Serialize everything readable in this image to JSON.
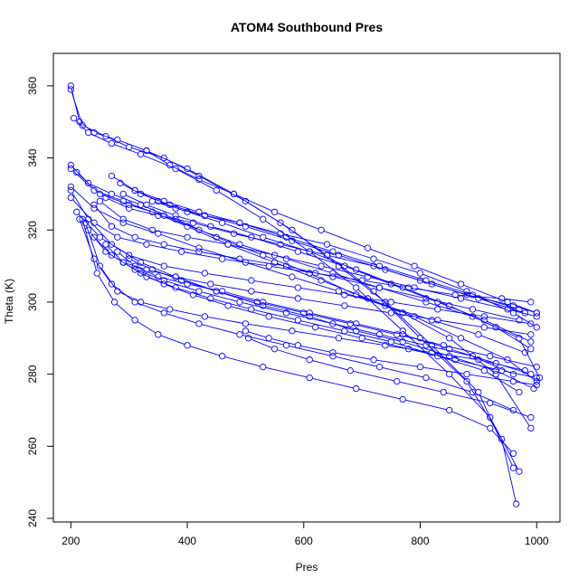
{
  "chart_data": {
    "type": "line",
    "title": "ATOM4 Southbound Pres",
    "xlabel": "Pres",
    "ylabel": "Theta (K)",
    "xlim": [
      170,
      1040
    ],
    "ylim": [
      239,
      369
    ],
    "xticks": [
      200,
      400,
      600,
      800,
      1000
    ],
    "yticks": [
      240,
      260,
      280,
      300,
      320,
      340,
      360
    ],
    "xtick_labels": [
      "200",
      "400",
      "600",
      "800",
      "1000"
    ],
    "ytick_labels": [
      "240",
      "260",
      "280",
      "300",
      "320",
      "340",
      "360"
    ],
    "grid": false,
    "legend": "none",
    "series_color": "#0000ff",
    "marker": "open-circle",
    "series": [
      {
        "x": [
          200,
          215,
          240,
          280,
          330,
          400,
          480,
          560,
          640,
          720,
          800,
          880,
          940,
          965
        ],
        "y": [
          360,
          350,
          347,
          345,
          342,
          337,
          330,
          322,
          313,
          303,
          290,
          278,
          262,
          244
        ]
      },
      {
        "x": [
          200,
          220,
          260,
          300,
          360,
          420,
          500,
          580,
          660,
          740,
          820,
          900,
          960
        ],
        "y": [
          359,
          349,
          346,
          343,
          340,
          335,
          328,
          320,
          310,
          300,
          288,
          275,
          254
        ]
      },
      {
        "x": [
          205,
          230,
          270,
          320,
          380,
          450,
          530,
          610,
          690,
          770,
          850,
          920,
          970
        ],
        "y": [
          351,
          347,
          344,
          341,
          337,
          331,
          323,
          314,
          304,
          292,
          280,
          268,
          253
        ]
      },
      {
        "x": [
          200,
          230,
          270,
          320,
          380,
          450,
          530,
          610,
          690,
          770,
          850,
          930,
          990
        ],
        "y": [
          338,
          333,
          330,
          327,
          323,
          318,
          313,
          308,
          302,
          297,
          290,
          280,
          265
        ]
      },
      {
        "x": [
          200,
          240,
          290,
          340,
          400,
          470,
          550,
          630,
          710,
          790,
          870,
          950,
          1000
        ],
        "y": [
          337,
          331,
          328,
          325,
          321,
          316,
          311,
          306,
          301,
          296,
          290,
          284,
          278
        ]
      },
      {
        "x": [
          210,
          250,
          300,
          360,
          420,
          490,
          570,
          650,
          730,
          810,
          890,
          970,
          1005
        ],
        "y": [
          336,
          330,
          327,
          324,
          320,
          316,
          312,
          308,
          304,
          300,
          296,
          290,
          279
        ]
      },
      {
        "x": [
          200,
          240,
          290,
          350,
          420,
          500,
          580,
          660,
          740,
          820,
          900,
          980
        ],
        "y": [
          332,
          326,
          322,
          319,
          315,
          311,
          307,
          303,
          299,
          295,
          291,
          286
        ]
      },
      {
        "x": [
          200,
          230,
          270,
          320,
          380,
          450,
          530,
          610,
          690,
          770,
          850,
          930,
          995
        ],
        "y": [
          331,
          323,
          316,
          311,
          307,
          303,
          299,
          296,
          292,
          289,
          285,
          281,
          276
        ]
      },
      {
        "x": [
          200,
          240,
          280,
          330,
          390,
          460,
          540,
          620,
          700,
          780,
          860,
          940,
          990
        ],
        "y": [
          329,
          322,
          318,
          316,
          314,
          312,
          310,
          308,
          306,
          304,
          302,
          301,
          300
        ]
      },
      {
        "x": [
          210,
          250,
          300,
          360,
          430,
          510,
          590,
          670,
          750,
          830,
          910,
          990
        ],
        "y": [
          325,
          318,
          313,
          310,
          308,
          306,
          304,
          302,
          300,
          298,
          296,
          294
        ]
      },
      {
        "x": [
          215,
          240,
          270,
          310,
          360,
          420,
          490,
          570,
          650,
          730,
          810,
          890,
          960
        ],
        "y": [
          323,
          312,
          305,
          300,
          297,
          294,
          291,
          288,
          285,
          282,
          279,
          275,
          270
        ]
      },
      {
        "x": [
          220,
          245,
          275,
          310,
          350,
          400,
          460,
          530,
          610,
          690,
          770,
          850,
          920,
          960
        ],
        "y": [
          323,
          308,
          300,
          295,
          291,
          288,
          285,
          282,
          279,
          276,
          273,
          270,
          265,
          258
        ]
      },
      {
        "x": [
          225,
          250,
          280,
          320,
          370,
          430,
          500,
          580,
          660,
          740,
          820,
          900,
          980
        ],
        "y": [
          322,
          310,
          303,
          300,
          298,
          296,
          294,
          292,
          290,
          288,
          286,
          284,
          281
        ]
      },
      {
        "x": [
          230,
          260,
          290,
          330,
          380,
          440,
          510,
          590,
          670,
          750,
          830,
          910,
          990
        ],
        "y": [
          320,
          314,
          311,
          309,
          307,
          305,
          303,
          301,
          299,
          297,
          295,
          293,
          291
        ]
      },
      {
        "x": [
          240,
          270,
          310,
          360,
          420,
          490,
          570,
          650,
          730,
          810,
          890,
          970
        ],
        "y": [
          327,
          321,
          318,
          316,
          314,
          312,
          310,
          307,
          304,
          301,
          298,
          295
        ]
      },
      {
        "x": [
          250,
          290,
          340,
          400,
          470,
          550,
          630,
          710,
          790,
          870,
          950,
          1000
        ],
        "y": [
          328,
          323,
          320,
          318,
          316,
          313,
          310,
          307,
          304,
          301,
          298,
          296
        ]
      },
      {
        "x": [
          260,
          300,
          350,
          410,
          480,
          560,
          640,
          720,
          800,
          880,
          960,
          1000
        ],
        "y": [
          329,
          326,
          324,
          322,
          319,
          316,
          313,
          310,
          306,
          302,
          299,
          297
        ]
      },
      {
        "x": [
          270,
          310,
          360,
          420,
          490,
          570,
          650,
          730,
          810,
          890,
          970
        ],
        "y": [
          335,
          331,
          328,
          325,
          322,
          318,
          314,
          310,
          306,
          302,
          298
        ]
      },
      {
        "x": [
          285,
          320,
          370,
          430,
          500,
          580,
          660,
          740,
          820,
          900,
          980
        ],
        "y": [
          333,
          330,
          327,
          324,
          321,
          317,
          313,
          309,
          305,
          301,
          297
        ]
      },
      {
        "x": [
          290,
          330,
          380,
          440,
          510,
          590,
          670,
          750,
          830,
          910,
          990
        ],
        "y": [
          330,
          327,
          324,
          321,
          318,
          314,
          310,
          305,
          300,
          295,
          289
        ]
      },
      {
        "x": [
          310,
          350,
          400,
          460,
          530,
          610,
          690,
          770,
          850,
          930,
          990
        ],
        "y": [
          331,
          328,
          325,
          322,
          318,
          314,
          309,
          304,
          299,
          293,
          287
        ]
      },
      {
        "x": [
          330,
          370,
          420,
          480,
          550,
          630,
          710,
          790,
          870,
          950,
          1000
        ],
        "y": [
          342,
          338,
          334,
          330,
          325,
          320,
          315,
          310,
          305,
          300,
          297
        ]
      },
      {
        "x": [
          340,
          380,
          430,
          490,
          560,
          640,
          720,
          800,
          880,
          960,
          1000
        ],
        "y": [
          328,
          326,
          324,
          322,
          319,
          316,
          312,
          308,
          303,
          297,
          293
        ]
      },
      {
        "x": [
          240,
          270,
          310,
          360,
          420,
          490,
          570,
          650,
          730,
          810,
          890,
          960
        ],
        "y": [
          318,
          313,
          309,
          306,
          303,
          300,
          297,
          294,
          291,
          288,
          285,
          280
        ]
      },
      {
        "x": [
          260,
          290,
          330,
          380,
          440,
          510,
          590,
          670,
          750,
          830,
          910,
          970
        ],
        "y": [
          316,
          311,
          307,
          304,
          301,
          298,
          295,
          292,
          289,
          285,
          281,
          275
        ]
      },
      {
        "x": [
          280,
          310,
          350,
          400,
          460,
          530,
          610,
          690,
          770,
          850,
          930,
          990
        ],
        "y": [
          314,
          310,
          307,
          305,
          303,
          300,
          297,
          294,
          291,
          287,
          283,
          280
        ]
      },
      {
        "x": [
          300,
          340,
          390,
          450,
          520,
          600,
          680,
          760,
          840,
          920,
          1000
        ],
        "y": [
          312,
          309,
          306,
          303,
          300,
          297,
          294,
          291,
          288,
          285,
          282
        ]
      },
      {
        "x": [
          320,
          360,
          410,
          470,
          540,
          620,
          700,
          780,
          860,
          940,
          1000
        ],
        "y": [
          308,
          305,
          302,
          299,
          296,
          293,
          290,
          287,
          284,
          281,
          279
        ]
      },
      {
        "x": [
          500,
          540,
          590,
          650,
          720,
          800,
          880,
          960,
          1000
        ],
        "y": [
          292,
          290,
          288,
          286,
          284,
          282,
          280,
          278,
          277
        ]
      },
      {
        "x": [
          505,
          550,
          610,
          680,
          760,
          840,
          920,
          990
        ],
        "y": [
          290,
          287,
          284,
          281,
          278,
          275,
          272,
          268
        ]
      }
    ]
  }
}
